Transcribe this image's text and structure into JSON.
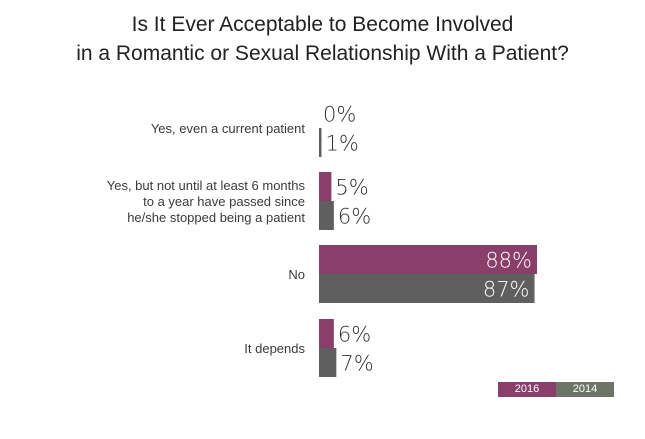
{
  "chart_data": {
    "type": "bar",
    "orientation": "horizontal",
    "title": [
      "Is It Ever Acceptable to Become Involved",
      "in a Romantic or Sexual Relationship With a Patient?"
    ],
    "categories": [
      [
        "Yes, even a current patient"
      ],
      [
        "Yes, but not until at least 6 months",
        "to a year have passed since",
        "he/she stopped being a patient"
      ],
      [
        "No"
      ],
      [
        "It depends"
      ]
    ],
    "series": [
      {
        "name": "2016",
        "color": "#8a3f6a",
        "values": [
          0,
          5,
          88,
          6
        ],
        "labels": [
          "0%",
          "5%",
          "88%",
          "6%"
        ]
      },
      {
        "name": "2014",
        "color": "#5f5f5f",
        "values": [
          1,
          6,
          87,
          7
        ],
        "labels": [
          "1%",
          "6%",
          "87%",
          "7%"
        ]
      }
    ],
    "xlim": [
      0,
      100
    ],
    "grid": false,
    "legend_position": "bottom-right",
    "legend_colors": [
      "#8a3f6a",
      "#6c7566"
    ]
  }
}
